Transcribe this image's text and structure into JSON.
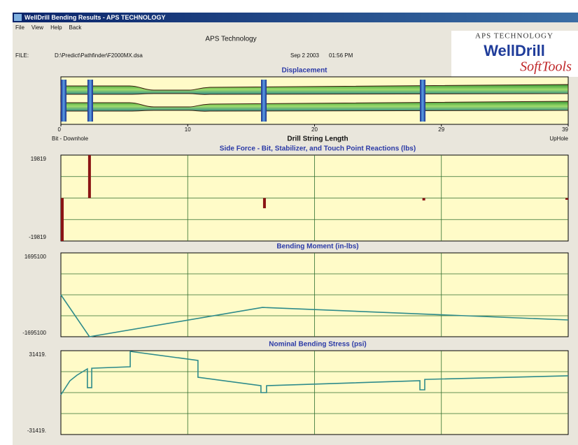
{
  "window": {
    "title": "WellDrill Bending Results  -  APS TECHNOLOGY"
  },
  "menu": [
    "File",
    "View",
    "Help",
    "Back"
  ],
  "header": {
    "company": "APS Technology",
    "file_label": "FILE:",
    "file_path": "D:\\Predict\\Pathfinder\\F2000MX.dsa",
    "date": "Sep 2 2003",
    "time": "01:56 PM"
  },
  "logo": {
    "company": "APS TECHNOLOGY",
    "product": "WellDrill",
    "tagline": "SoftTools"
  },
  "chart_data": [
    {
      "type": "displacement",
      "title": "Displacement",
      "xlim": [
        0,
        39
      ],
      "xticks": [
        0,
        {
          "value": 9.75,
          "label": "10"
        },
        {
          "value": 19.5,
          "label": "20"
        },
        {
          "value": 29.25,
          "label": "29"
        },
        39
      ],
      "xlabel": "Drill String Length",
      "x_start_label": "Bit - Downhole",
      "x_end_label": "UpHole"
    },
    {
      "type": "bar",
      "title": "Side Force - Bit, Stabilizer,  and Touch Point Reactions (lbs)",
      "x": [
        0,
        2.2,
        15.65,
        27.9,
        39
      ],
      "values": [
        -19819,
        19819,
        -4700,
        -1100,
        -800
      ],
      "color": "#8b1414",
      "xlim": [
        0,
        39
      ],
      "xgrid": [
        9.75,
        19.5,
        29.25
      ],
      "ylim": [
        -19819,
        19819
      ],
      "yticks": [
        -19819,
        19819
      ],
      "grid_divisions": 4
    },
    {
      "type": "line",
      "title": "Bending Moment (in-lbs)",
      "x": [
        0,
        2.2,
        15.5,
        39
      ],
      "values": [
        0,
        -1695100,
        -510000,
        -1017000
      ],
      "color": "#2e8b8b",
      "xlim": [
        0,
        39
      ],
      "xgrid": [
        9.75,
        19.5,
        29.25
      ],
      "ylim": [
        -1695100,
        1695100
      ],
      "yticks": [
        -1695100,
        1695100
      ],
      "grid_divisions": 4
    },
    {
      "type": "line",
      "title": "Nominal Bending Stress (psi)",
      "x": [
        0,
        0.7,
        1.24,
        2.04,
        2.04,
        2.37,
        2.37,
        5.33,
        5.33,
        10.54,
        10.54,
        15.38,
        15.38,
        15.81,
        15.81,
        27.6,
        27.6,
        27.97,
        27.97,
        39
      ],
      "values": [
        -1600,
        8900,
        13100,
        17800,
        3700,
        3700,
        18300,
        19400,
        30900,
        24100,
        11500,
        5200,
        0,
        0,
        5200,
        8900,
        2100,
        2100,
        9900,
        12600
      ],
      "color": "#2e8b8b",
      "xlim": [
        0,
        39
      ],
      "xgrid": [
        9.75,
        19.5,
        29.25
      ],
      "ylim": [
        -31419,
        31419
      ],
      "yticks": [
        {
          "value": -31419,
          "label": "-31419."
        },
        {
          "value": 31419,
          "label": "31419."
        }
      ],
      "grid_divisions": 4
    }
  ]
}
